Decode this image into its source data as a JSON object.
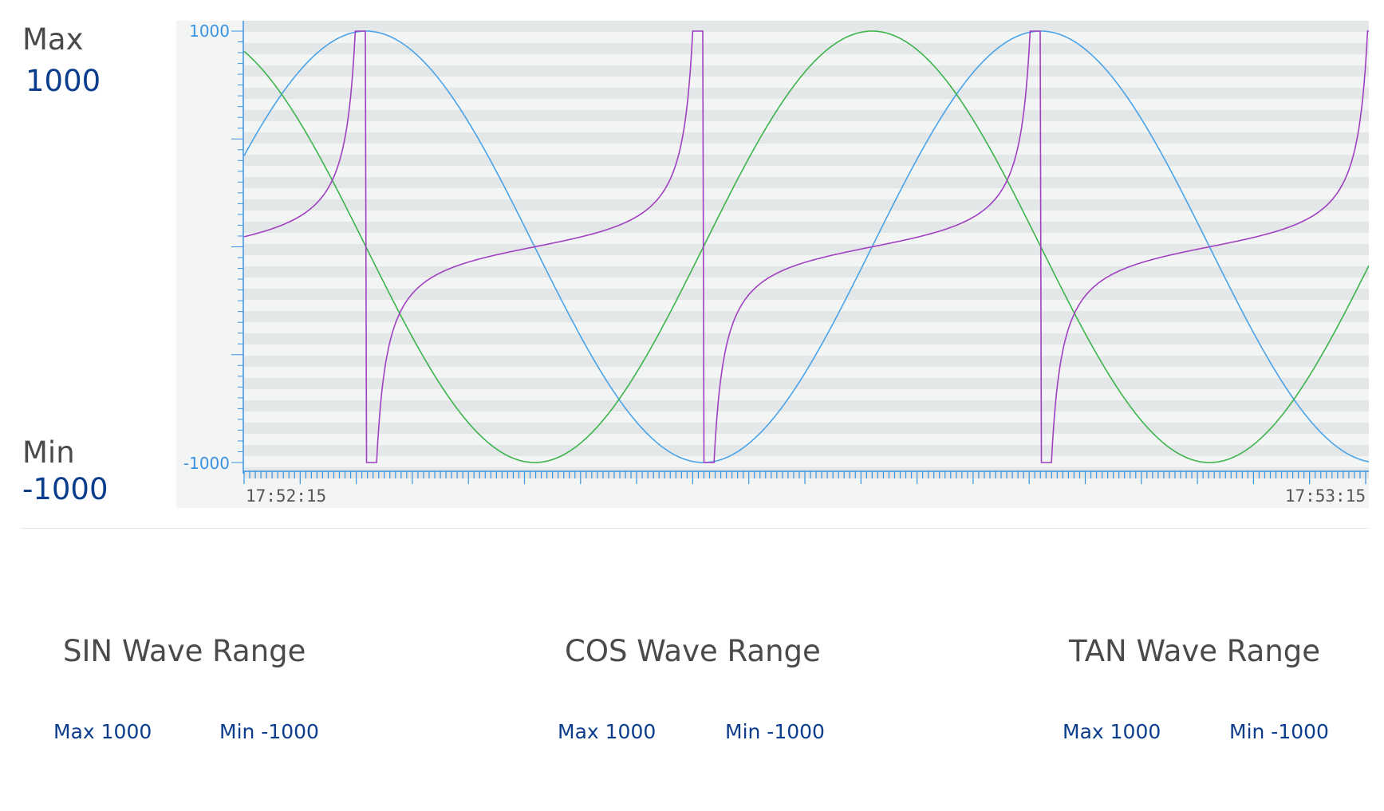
{
  "side": {
    "max_label": "Max",
    "max_value": "1000",
    "min_label": "Min",
    "min_value": "-1000"
  },
  "ranges": [
    {
      "title": "SIN Wave Range",
      "max": "Max 1000",
      "min": "Min -1000"
    },
    {
      "title": "COS Wave Range",
      "max": "Max 1000",
      "min": "Min -1000"
    },
    {
      "title": "TAN Wave Range",
      "max": "Max 1000",
      "min": "Min -1000"
    }
  ],
  "colors": {
    "sin": "#4aa3e8",
    "cos": "#3cb44b",
    "tan": "#a040c0",
    "axis": "#3a93e0",
    "band": "#e3e7e7"
  },
  "chart_data": {
    "type": "line",
    "title": "",
    "xlabel": "",
    "ylabel": "",
    "ylim": [
      -1000,
      1000
    ],
    "y_tick_labels": [
      "1000",
      "-1000"
    ],
    "x_tick_labels": [
      "17:52:15",
      "17:53:15"
    ],
    "x_range_seconds": [
      0,
      60
    ],
    "grid": "horizontal bands",
    "series": [
      {
        "key": "sin",
        "kind": "sin",
        "amplitude": 1000,
        "period_seconds": 36,
        "phase_deg": 25
      },
      {
        "key": "cos",
        "kind": "cos",
        "amplitude": 1000,
        "period_seconds": 36,
        "phase_deg": 25
      },
      {
        "key": "tan",
        "kind": "tan",
        "amplitude": 1000,
        "period_seconds": 18,
        "phase_deg": 50
      }
    ]
  }
}
